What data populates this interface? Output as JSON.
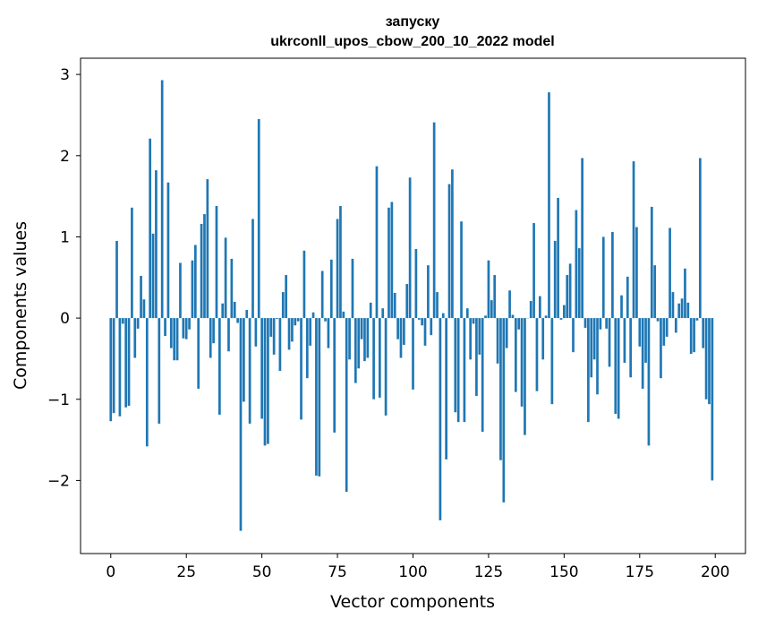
{
  "chart_data": {
    "type": "bar",
    "title_line1": "запуску",
    "title_line2": "ukrconll_upos_cbow_200_10_2022 model",
    "xlabel": "Vector components",
    "ylabel": "Components values",
    "xlim": [
      -10,
      210
    ],
    "ylim": [
      -2.9,
      3.2
    ],
    "xticks": [
      0,
      25,
      50,
      75,
      100,
      125,
      150,
      175,
      200
    ],
    "xtick_labels": [
      "0",
      "25",
      "50",
      "75",
      "100",
      "125",
      "150",
      "175",
      "200"
    ],
    "yticks": [
      -2,
      -1,
      0,
      1,
      2,
      3
    ],
    "ytick_labels": [
      "−2",
      "−1",
      "0",
      "1",
      "2",
      "3"
    ],
    "grid": false,
    "bar_color": "#1f77b4",
    "x_start": 0,
    "values": [
      -1.27,
      -1.17,
      0.95,
      -1.21,
      -0.07,
      -1.1,
      -1.08,
      1.36,
      -0.49,
      -0.13,
      0.52,
      0.23,
      -1.58,
      2.21,
      1.04,
      1.82,
      -1.3,
      2.93,
      -0.22,
      1.67,
      -0.37,
      -0.52,
      -0.52,
      0.68,
      -0.25,
      -0.26,
      -0.14,
      0.71,
      0.9,
      -0.87,
      1.16,
      1.28,
      1.71,
      -0.49,
      -0.31,
      1.38,
      -1.19,
      0.18,
      0.99,
      -0.41,
      0.73,
      0.2,
      -0.06,
      -2.62,
      -1.03,
      0.1,
      -1.3,
      1.22,
      -0.35,
      2.45,
      -1.24,
      -1.57,
      -1.55,
      -0.23,
      -0.45,
      -0.01,
      -0.65,
      0.32,
      0.53,
      -0.39,
      -0.29,
      -0.09,
      -0.04,
      -1.25,
      0.83,
      -0.74,
      -0.34,
      0.07,
      -1.94,
      -1.95,
      0.58,
      -0.04,
      -0.37,
      0.72,
      -1.41,
      1.22,
      1.38,
      0.08,
      -2.14,
      -0.51,
      0.73,
      -0.8,
      -0.62,
      -0.26,
      -0.53,
      -0.49,
      0.19,
      -1.0,
      1.87,
      -0.98,
      0.12,
      -1.2,
      1.36,
      1.43,
      0.31,
      -0.26,
      -0.49,
      -0.33,
      0.42,
      1.73,
      -0.88,
      0.85,
      -0.02,
      -0.09,
      -0.34,
      0.65,
      -0.21,
      2.41,
      0.32,
      -2.49,
      0.06,
      -1.74,
      1.65,
      1.83,
      -1.16,
      -1.28,
      1.19,
      -1.28,
      0.12,
      -0.51,
      -0.07,
      -0.96,
      -0.45,
      -1.4,
      0.03,
      0.71,
      0.22,
      0.53,
      -0.56,
      -1.75,
      -2.27,
      -0.37,
      0.34,
      0.04,
      -0.91,
      -0.14,
      -1.09,
      -1.44,
      0.0,
      0.21,
      1.17,
      -0.9,
      0.27,
      -0.51,
      0.03,
      2.78,
      -1.06,
      0.95,
      1.48,
      -0.02,
      0.16,
      0.53,
      0.67,
      -0.42,
      1.33,
      0.86,
      1.97,
      -0.12,
      -1.28,
      -0.73,
      -0.51,
      -0.94,
      -0.14,
      1.0,
      -0.13,
      -0.6,
      1.06,
      -1.18,
      -1.24,
      0.28,
      -0.55,
      0.51,
      -0.73,
      1.93,
      1.12,
      -0.35,
      -0.87,
      -0.55,
      -1.57,
      1.37,
      0.65,
      -0.04,
      -0.74,
      -0.34,
      -0.23,
      1.11,
      0.32,
      -0.18,
      0.18,
      0.24,
      0.61,
      0.19,
      -0.44,
      -0.42,
      -0.03,
      1.97,
      -0.37,
      -1.0,
      -1.06,
      -2.0
    ]
  }
}
